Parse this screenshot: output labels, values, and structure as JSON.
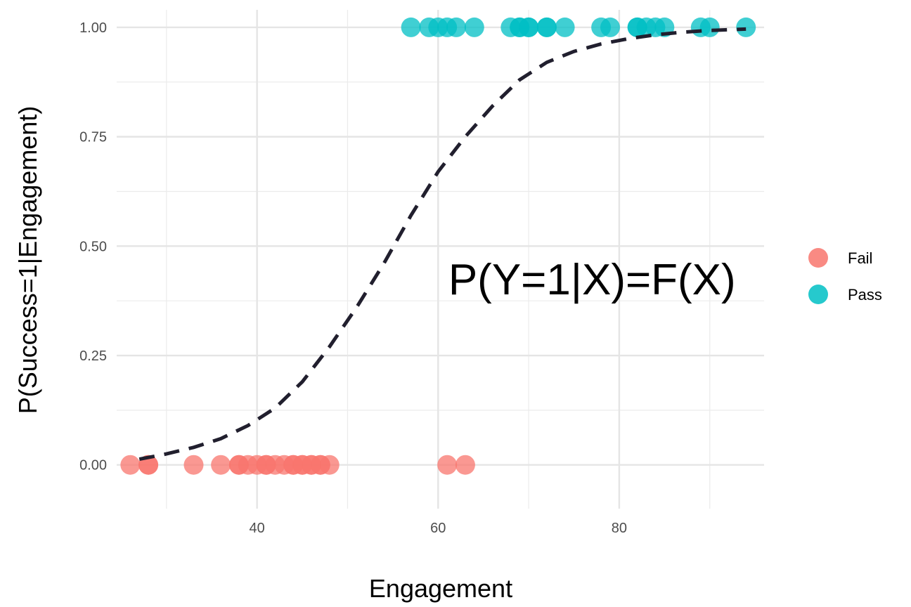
{
  "chart_data": {
    "type": "scatter",
    "xlabel": "Engagement",
    "ylabel": "P(Success=1|Engagement)",
    "xlim": [
      24.5,
      96
    ],
    "ylim": [
      -0.1,
      1.04
    ],
    "x_ticks": [
      40,
      60,
      80
    ],
    "x_tick_labels": [
      "40",
      "60",
      "80"
    ],
    "y_ticks": [
      0,
      0.25,
      0.5,
      0.75,
      1
    ],
    "y_tick_labels": [
      "0.00",
      "0.25",
      "0.50",
      "0.75",
      "1.00"
    ],
    "grid": true,
    "legend_position": "right",
    "annotation": {
      "text": "P(Y=1|X)=F(X)",
      "x": 77,
      "y": 0.39
    },
    "series": [
      {
        "name": "Fail",
        "color": "#F8766D",
        "points": [
          {
            "x": 26,
            "y": 0
          },
          {
            "x": 28,
            "y": 0
          },
          {
            "x": 28,
            "y": 0
          },
          {
            "x": 33,
            "y": 0
          },
          {
            "x": 36,
            "y": 0
          },
          {
            "x": 38,
            "y": 0
          },
          {
            "x": 38,
            "y": 0
          },
          {
            "x": 39,
            "y": 0
          },
          {
            "x": 40,
            "y": 0
          },
          {
            "x": 41,
            "y": 0
          },
          {
            "x": 41,
            "y": 0
          },
          {
            "x": 42,
            "y": 0
          },
          {
            "x": 43,
            "y": 0
          },
          {
            "x": 44,
            "y": 0
          },
          {
            "x": 44,
            "y": 0
          },
          {
            "x": 45,
            "y": 0
          },
          {
            "x": 45,
            "y": 0
          },
          {
            "x": 46,
            "y": 0
          },
          {
            "x": 46,
            "y": 0
          },
          {
            "x": 47,
            "y": 0
          },
          {
            "x": 47,
            "y": 0
          },
          {
            "x": 48,
            "y": 0
          },
          {
            "x": 61,
            "y": 0
          },
          {
            "x": 63,
            "y": 0
          }
        ]
      },
      {
        "name": "Pass",
        "color": "#00BFC4",
        "points": [
          {
            "x": 57,
            "y": 1
          },
          {
            "x": 59,
            "y": 1
          },
          {
            "x": 60,
            "y": 1
          },
          {
            "x": 61,
            "y": 1
          },
          {
            "x": 62,
            "y": 1
          },
          {
            "x": 64,
            "y": 1
          },
          {
            "x": 68,
            "y": 1
          },
          {
            "x": 69,
            "y": 1
          },
          {
            "x": 69,
            "y": 1
          },
          {
            "x": 70,
            "y": 1
          },
          {
            "x": 70,
            "y": 1
          },
          {
            "x": 72,
            "y": 1
          },
          {
            "x": 72,
            "y": 1
          },
          {
            "x": 74,
            "y": 1
          },
          {
            "x": 78,
            "y": 1
          },
          {
            "x": 79,
            "y": 1
          },
          {
            "x": 82,
            "y": 1
          },
          {
            "x": 82,
            "y": 1
          },
          {
            "x": 83,
            "y": 1
          },
          {
            "x": 84,
            "y": 1
          },
          {
            "x": 85,
            "y": 1
          },
          {
            "x": 89,
            "y": 1
          },
          {
            "x": 90,
            "y": 1
          },
          {
            "x": 94,
            "y": 1
          }
        ]
      }
    ],
    "curve": {
      "style": "dashed",
      "color": "#211f2e",
      "points": [
        {
          "x": 27,
          "y": 0.013
        },
        {
          "x": 30,
          "y": 0.025
        },
        {
          "x": 33,
          "y": 0.04
        },
        {
          "x": 36,
          "y": 0.06
        },
        {
          "x": 39,
          "y": 0.09
        },
        {
          "x": 42,
          "y": 0.13
        },
        {
          "x": 45,
          "y": 0.19
        },
        {
          "x": 48,
          "y": 0.27
        },
        {
          "x": 51,
          "y": 0.36
        },
        {
          "x": 54,
          "y": 0.46
        },
        {
          "x": 57,
          "y": 0.57
        },
        {
          "x": 60,
          "y": 0.67
        },
        {
          "x": 63,
          "y": 0.75
        },
        {
          "x": 66,
          "y": 0.82
        },
        {
          "x": 69,
          "y": 0.88
        },
        {
          "x": 72,
          "y": 0.92
        },
        {
          "x": 75,
          "y": 0.945
        },
        {
          "x": 78,
          "y": 0.962
        },
        {
          "x": 81,
          "y": 0.974
        },
        {
          "x": 84,
          "y": 0.983
        },
        {
          "x": 87,
          "y": 0.989
        },
        {
          "x": 90,
          "y": 0.993
        },
        {
          "x": 94,
          "y": 0.996
        }
      ]
    }
  }
}
